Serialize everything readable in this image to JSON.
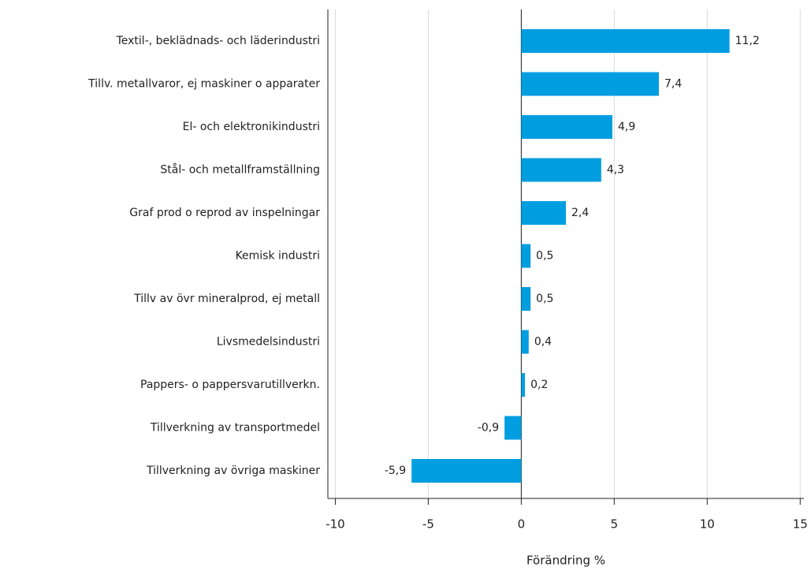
{
  "chart_data": {
    "type": "hbar",
    "categories": [
      "Textil-, beklädnads- och läderindustri",
      "Tillv. metallvaror, ej maskiner o apparater",
      "El- och elektronikindustri",
      "Stål- och metallframställning",
      "Graf prod o reprod av inspelningar",
      "Kemisk industri",
      "Tillv av övr mineralprod, ej metall",
      "Livsmedelsindustri",
      "Pappers- o pappersvarutillverkn.",
      "Tillverkning av transportmedel",
      "Tillverkning av övriga maskiner"
    ],
    "values": [
      11.2,
      7.4,
      4.9,
      4.3,
      2.4,
      0.5,
      0.5,
      0.4,
      0.2,
      -0.9,
      -5.9
    ],
    "value_labels": [
      "11,2",
      "7,4",
      "4,9",
      "4,3",
      "2,4",
      "0,5",
      "0,5",
      "0,4",
      "0,2",
      "-0,9",
      "-5,9"
    ],
    "color": "#009ee0",
    "xlabel": "Förändring %",
    "xlim": [
      -10.4,
      15.2
    ],
    "xticks": [
      -10,
      -5,
      0,
      5,
      10,
      15
    ],
    "grid": true
  }
}
